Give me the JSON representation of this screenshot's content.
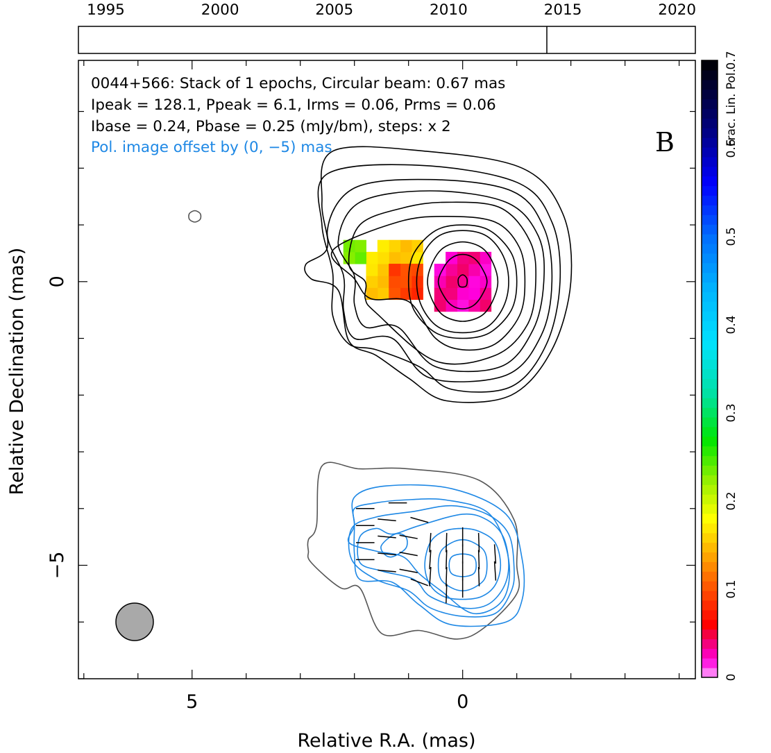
{
  "timeline": {
    "years": [
      "1995",
      "2000",
      "2005",
      "2010",
      "2015",
      "2020"
    ],
    "year_values": [
      1995,
      2000,
      2005,
      2010,
      2015,
      2020
    ],
    "range": [
      1993.8,
      2020.8
    ],
    "epoch_markers": [
      2014.3
    ]
  },
  "header": {
    "line1": "0044+566: Stack of 1 epochs, Circular beam: 0.67 mas",
    "line2": "Ipeak = 128.1, Ppeak = 6.1, Irms = 0.06, Prms = 0.06",
    "line3": "Ibase = 0.24, Pbase = 0.25 (mJy/bm), steps: x 2",
    "offset_note": "Pol. image offset by (0, −5) mas",
    "panel_letter": "B"
  },
  "colorbar": {
    "label": "Frac. Lin. Pol.",
    "ticks": [
      "0",
      "0.1",
      "0.2",
      "0.3",
      "0.4",
      "0.5",
      "0.6",
      "0.7"
    ],
    "tick_values": [
      0,
      0.1,
      0.2,
      0.3,
      0.4,
      0.5,
      0.6,
      0.7
    ],
    "range": [
      0,
      0.7
    ]
  },
  "chart_data": {
    "type": "heatmap",
    "xlabel": "Relative R.A. (mas)",
    "ylabel": "Relative Declination (mas)",
    "xlim": [
      7.1,
      -4.3
    ],
    "ylim": [
      -7.0,
      3.9
    ],
    "xticks": [
      5,
      0
    ],
    "xtick_labels": [
      "5",
      "0"
    ],
    "yticks": [
      0,
      -5
    ],
    "ytick_labels": [
      "0",
      "−5"
    ],
    "beam_diameter_mas": 0.67,
    "offset_mas": [
      0,
      -5
    ],
    "fracpol_blobs": [
      {
        "ra": 0.0,
        "dec": 0.0,
        "fp": 0.03,
        "radius": 0.6
      },
      {
        "ra": 1.3,
        "dec": 0.2,
        "fp": 0.16,
        "radius": 0.6
      },
      {
        "ra": 1.0,
        "dec": 0.0,
        "fp": 0.09,
        "radius": 0.4
      },
      {
        "ra": 2.0,
        "dec": 0.45,
        "fp": 0.24,
        "radius": 0.25
      }
    ],
    "stokes_i_contours_mas": [
      [
        [
          -1.0,
          0.0
        ],
        [
          -0.9,
          0.5
        ],
        [
          -0.5,
          0.9
        ],
        [
          0.0,
          1.0
        ],
        [
          0.5,
          0.9
        ],
        [
          0.9,
          0.5
        ],
        [
          1.0,
          0.0
        ],
        [
          0.9,
          -0.5
        ],
        [
          0.5,
          -0.9
        ],
        [
          0.0,
          -1.0
        ],
        [
          -0.5,
          -0.9
        ],
        [
          -0.9,
          -0.5
        ]
      ],
      [
        [
          -0.85,
          0.0
        ],
        [
          -0.75,
          0.45
        ],
        [
          -0.45,
          0.8
        ],
        [
          0.0,
          0.9
        ],
        [
          0.45,
          0.8
        ],
        [
          0.75,
          0.45
        ],
        [
          0.85,
          0.0
        ],
        [
          0.75,
          -0.45
        ],
        [
          0.45,
          -0.8
        ],
        [
          0.0,
          -0.9
        ],
        [
          -0.45,
          -0.8
        ],
        [
          -0.75,
          -0.45
        ]
      ],
      [
        [
          -0.65,
          0.0
        ],
        [
          -0.55,
          0.35
        ],
        [
          -0.35,
          0.6
        ],
        [
          0.0,
          0.7
        ],
        [
          0.35,
          0.6
        ],
        [
          0.55,
          0.35
        ],
        [
          0.65,
          0.0
        ],
        [
          0.55,
          -0.35
        ],
        [
          0.35,
          -0.6
        ],
        [
          0.0,
          -0.7
        ],
        [
          -0.35,
          -0.6
        ],
        [
          -0.55,
          -0.35
        ]
      ],
      [
        [
          -0.45,
          0.0
        ],
        [
          -0.35,
          0.25
        ],
        [
          -0.2,
          0.42
        ],
        [
          0.0,
          0.48
        ],
        [
          0.2,
          0.42
        ],
        [
          0.35,
          0.25
        ],
        [
          0.45,
          0.0
        ],
        [
          0.35,
          -0.25
        ],
        [
          0.2,
          -0.42
        ],
        [
          0.0,
          -0.48
        ],
        [
          -0.2,
          -0.42
        ],
        [
          -0.35,
          -0.25
        ]
      ],
      [
        [
          -0.08,
          0.05
        ],
        [
          0.0,
          0.12
        ],
        [
          0.08,
          0.05
        ],
        [
          0.06,
          -0.08
        ],
        [
          -0.06,
          -0.08
        ]
      ],
      [
        [
          -1.15,
          0.0
        ],
        [
          -1.05,
          0.6
        ],
        [
          -0.6,
          1.05
        ],
        [
          0.3,
          1.15
        ],
        [
          1.2,
          1.05
        ],
        [
          2.4,
          0.55
        ],
        [
          2.0,
          0.05
        ],
        [
          1.7,
          -0.3
        ],
        [
          1.0,
          -0.35
        ],
        [
          0.5,
          -1.0
        ],
        [
          0.0,
          -1.2
        ],
        [
          -0.6,
          -1.1
        ],
        [
          -1.05,
          -0.6
        ]
      ],
      [
        [
          -1.35,
          0.0
        ],
        [
          -1.25,
          0.7
        ],
        [
          -0.7,
          1.3
        ],
        [
          0.3,
          1.4
        ],
        [
          1.1,
          1.3
        ],
        [
          1.9,
          1.0
        ],
        [
          2.1,
          0.3
        ],
        [
          1.8,
          0.0
        ],
        [
          1.8,
          -0.3
        ],
        [
          1.6,
          -0.55
        ],
        [
          0.5,
          -1.4
        ],
        [
          -0.6,
          -1.3
        ],
        [
          -1.2,
          -0.75
        ]
      ],
      [
        [
          -1.5,
          0.0
        ],
        [
          -1.4,
          0.8
        ],
        [
          -0.8,
          1.4
        ],
        [
          0.6,
          1.6
        ],
        [
          1.9,
          1.4
        ],
        [
          2.3,
          0.7
        ],
        [
          2.0,
          0.1
        ],
        [
          2.0,
          -0.4
        ],
        [
          1.8,
          -0.8
        ],
        [
          1.2,
          -0.8
        ],
        [
          0.5,
          -1.5
        ],
        [
          -0.7,
          -1.5
        ],
        [
          -1.3,
          -0.85
        ]
      ],
      [
        [
          -1.65,
          0.0
        ],
        [
          -1.5,
          0.95
        ],
        [
          -0.9,
          1.6
        ],
        [
          0.6,
          1.8
        ],
        [
          2.0,
          1.65
        ],
        [
          2.5,
          0.9
        ],
        [
          2.2,
          0.1
        ],
        [
          2.2,
          -0.5
        ],
        [
          2.0,
          -1.0
        ],
        [
          1.3,
          -1.0
        ],
        [
          0.6,
          -1.7
        ],
        [
          -0.8,
          -1.65
        ],
        [
          -1.45,
          -0.95
        ]
      ],
      [
        [
          -1.8,
          0.0
        ],
        [
          -1.65,
          1.05
        ],
        [
          -1.0,
          1.75
        ],
        [
          0.8,
          2.05
        ],
        [
          2.5,
          1.9
        ],
        [
          2.6,
          1.0
        ],
        [
          2.4,
          0.15
        ],
        [
          2.4,
          -0.6
        ],
        [
          2.1,
          -1.1
        ],
        [
          1.6,
          -1.2
        ],
        [
          0.8,
          -1.5
        ],
        [
          0.2,
          -1.9
        ],
        [
          -0.9,
          -1.85
        ],
        [
          -1.55,
          -1.1
        ]
      ],
      [
        [
          -2.0,
          0.0
        ],
        [
          -1.85,
          1.2
        ],
        [
          -1.1,
          2.0
        ],
        [
          0.7,
          2.3
        ],
        [
          2.4,
          2.3
        ],
        [
          2.6,
          1.4
        ],
        [
          2.5,
          0.6
        ],
        [
          2.9,
          0.3
        ],
        [
          2.8,
          0.05
        ],
        [
          2.3,
          -0.15
        ],
        [
          2.1,
          -1.05
        ],
        [
          1.6,
          -1.3
        ],
        [
          1.0,
          -1.7
        ],
        [
          0.3,
          -2.1
        ],
        [
          -0.9,
          -2.0
        ],
        [
          -1.65,
          -1.2
        ]
      ],
      [
        [
          4.95,
          1.25
        ],
        [
          4.85,
          1.2
        ],
        [
          4.85,
          1.1
        ],
        [
          4.95,
          1.05
        ],
        [
          5.05,
          1.1
        ],
        [
          5.05,
          1.2
        ]
      ]
    ],
    "pol_contours_mas": [
      [
        [
          -0.7,
          -5.0
        ],
        [
          -0.6,
          -4.6
        ],
        [
          -0.3,
          -4.4
        ],
        [
          0.0,
          -4.35
        ],
        [
          0.35,
          -4.4
        ],
        [
          0.6,
          -4.6
        ],
        [
          0.7,
          -5.0
        ],
        [
          0.6,
          -5.35
        ],
        [
          0.35,
          -5.55
        ],
        [
          0.0,
          -5.6
        ],
        [
          -0.35,
          -5.55
        ],
        [
          -0.6,
          -5.35
        ]
      ],
      [
        [
          -0.45,
          -5.0
        ],
        [
          -0.4,
          -4.75
        ],
        [
          -0.2,
          -4.6
        ],
        [
          0.0,
          -4.55
        ],
        [
          0.2,
          -4.6
        ],
        [
          0.4,
          -4.75
        ],
        [
          0.45,
          -5.0
        ],
        [
          0.4,
          -5.25
        ],
        [
          0.2,
          -5.4
        ],
        [
          0.0,
          -5.45
        ],
        [
          -0.2,
          -5.4
        ],
        [
          -0.4,
          -5.25
        ]
      ],
      [
        [
          -0.25,
          -5.0
        ],
        [
          -0.2,
          -4.85
        ],
        [
          0.0,
          -4.8
        ],
        [
          0.2,
          -4.85
        ],
        [
          0.25,
          -5.0
        ],
        [
          0.2,
          -5.15
        ],
        [
          0.0,
          -5.2
        ],
        [
          -0.2,
          -5.15
        ]
      ],
      [
        [
          -0.85,
          -5.0
        ],
        [
          -0.75,
          -4.5
        ],
        [
          -0.45,
          -4.2
        ],
        [
          0.0,
          -4.1
        ],
        [
          0.8,
          -4.3
        ],
        [
          1.3,
          -4.45
        ],
        [
          1.6,
          -4.35
        ],
        [
          1.9,
          -4.5
        ],
        [
          1.9,
          -4.95
        ],
        [
          1.5,
          -5.1
        ],
        [
          0.9,
          -5.25
        ],
        [
          0.6,
          -5.55
        ],
        [
          0.0,
          -5.75
        ],
        [
          -0.45,
          -5.7
        ],
        [
          -0.75,
          -5.4
        ]
      ],
      [
        [
          -0.95,
          -5.05
        ],
        [
          -0.85,
          -4.45
        ],
        [
          -0.45,
          -4.1
        ],
        [
          0.2,
          -3.95
        ],
        [
          0.9,
          -4.05
        ],
        [
          1.6,
          -4.15
        ],
        [
          2.05,
          -4.35
        ],
        [
          2.05,
          -4.9
        ],
        [
          1.6,
          -5.25
        ],
        [
          1.0,
          -5.45
        ],
        [
          0.6,
          -5.75
        ],
        [
          0.0,
          -5.9
        ],
        [
          -0.6,
          -5.85
        ],
        [
          -0.9,
          -5.45
        ]
      ],
      [
        [
          -0.85,
          -4.9
        ],
        [
          -0.5,
          -4.1
        ],
        [
          0.3,
          -3.85
        ],
        [
          1.1,
          -3.85
        ],
        [
          1.6,
          -3.9
        ],
        [
          2.0,
          -4.0
        ],
        [
          2.0,
          -4.3
        ],
        [
          2.1,
          -4.6
        ],
        [
          1.6,
          -4.75
        ],
        [
          1.1,
          -4.85
        ],
        [
          0.8,
          -5.15
        ],
        [
          0.4,
          -5.45
        ],
        [
          -0.2,
          -5.85
        ],
        [
          -0.75,
          -5.6
        ]
      ],
      [
        [
          -1.1,
          -4.9
        ],
        [
          -0.8,
          -4.1
        ],
        [
          0.2,
          -3.65
        ],
        [
          1.4,
          -3.6
        ],
        [
          2.0,
          -3.8
        ],
        [
          2.0,
          -4.3
        ],
        [
          2.0,
          -4.8
        ],
        [
          1.9,
          -5.25
        ],
        [
          1.3,
          -5.3
        ],
        [
          0.8,
          -5.7
        ],
        [
          0.2,
          -6.05
        ],
        [
          -0.8,
          -6.0
        ],
        [
          -1.1,
          -5.6
        ]
      ],
      [
        [
          1.5,
          -4.65
        ],
        [
          1.25,
          -4.45
        ],
        [
          1.05,
          -4.5
        ],
        [
          1.05,
          -4.7
        ],
        [
          1.3,
          -4.85
        ],
        [
          1.45,
          -4.8
        ]
      ]
    ],
    "total_intensity_offset_contour_mas": [
      [
        -1.0,
        -5.0
      ],
      [
        -0.95,
        -4.2
      ],
      [
        -0.3,
        -3.5
      ],
      [
        1.0,
        -3.3
      ],
      [
        1.9,
        -3.3
      ],
      [
        2.6,
        -3.25
      ],
      [
        2.7,
        -4.3
      ],
      [
        2.85,
        -4.55
      ],
      [
        2.85,
        -4.75
      ],
      [
        2.8,
        -4.95
      ],
      [
        2.25,
        -5.4
      ],
      [
        1.9,
        -5.4
      ],
      [
        1.5,
        -6.2
      ],
      [
        0.8,
        -6.15
      ],
      [
        0.1,
        -6.3
      ],
      [
        -0.4,
        -6.1
      ],
      [
        -1.0,
        -5.5
      ]
    ],
    "evpa_vectors": [
      {
        "ra": 0.0,
        "dec": -4.5,
        "angle_deg": 90
      },
      {
        "ra": 0.0,
        "dec": -4.8,
        "angle_deg": 90
      },
      {
        "ra": 0.0,
        "dec": -5.1,
        "angle_deg": 90
      },
      {
        "ra": 0.0,
        "dec": -5.4,
        "angle_deg": 90
      },
      {
        "ra": -0.3,
        "dec": -4.6,
        "angle_deg": 88
      },
      {
        "ra": -0.3,
        "dec": -4.9,
        "angle_deg": 88
      },
      {
        "ra": -0.3,
        "dec": -5.2,
        "angle_deg": 88
      },
      {
        "ra": 0.3,
        "dec": -4.6,
        "angle_deg": 92
      },
      {
        "ra": 0.3,
        "dec": -4.9,
        "angle_deg": 92
      },
      {
        "ra": 0.3,
        "dec": -5.2,
        "angle_deg": 92
      },
      {
        "ra": 0.3,
        "dec": -5.5,
        "angle_deg": 92
      },
      {
        "ra": 0.6,
        "dec": -4.6,
        "angle_deg": 94
      },
      {
        "ra": 0.6,
        "dec": -4.9,
        "angle_deg": 94
      },
      {
        "ra": 0.6,
        "dec": -5.2,
        "angle_deg": 94
      },
      {
        "ra": -0.6,
        "dec": -4.8,
        "angle_deg": 86
      },
      {
        "ra": -0.6,
        "dec": -5.1,
        "angle_deg": 86
      },
      {
        "ra": 1.0,
        "dec": -4.5,
        "angle_deg": 10
      },
      {
        "ra": 1.0,
        "dec": -4.8,
        "angle_deg": 10
      },
      {
        "ra": 1.0,
        "dec": -5.1,
        "angle_deg": 10
      },
      {
        "ra": 1.4,
        "dec": -4.2,
        "angle_deg": 5
      },
      {
        "ra": 1.4,
        "dec": -4.5,
        "angle_deg": 5
      },
      {
        "ra": 1.4,
        "dec": -4.8,
        "angle_deg": 5
      },
      {
        "ra": 1.4,
        "dec": -5.1,
        "angle_deg": 5
      },
      {
        "ra": 1.8,
        "dec": -4.0,
        "angle_deg": 0
      },
      {
        "ra": 1.8,
        "dec": -4.3,
        "angle_deg": 0
      },
      {
        "ra": 1.8,
        "dec": -4.6,
        "angle_deg": 0
      },
      {
        "ra": 1.8,
        "dec": -4.9,
        "angle_deg": 0
      },
      {
        "ra": 1.2,
        "dec": -3.9,
        "angle_deg": 0
      },
      {
        "ra": 0.8,
        "dec": -4.2,
        "angle_deg": 15
      },
      {
        "ra": 0.8,
        "dec": -5.3,
        "angle_deg": 20
      }
    ]
  },
  "colors": {
    "contour": "#000000",
    "pol_contour": "#1e88e5",
    "offset_contour": "#555555",
    "annotation_blue": "#1e88e5",
    "beam_fill": "#a9a9a9"
  }
}
